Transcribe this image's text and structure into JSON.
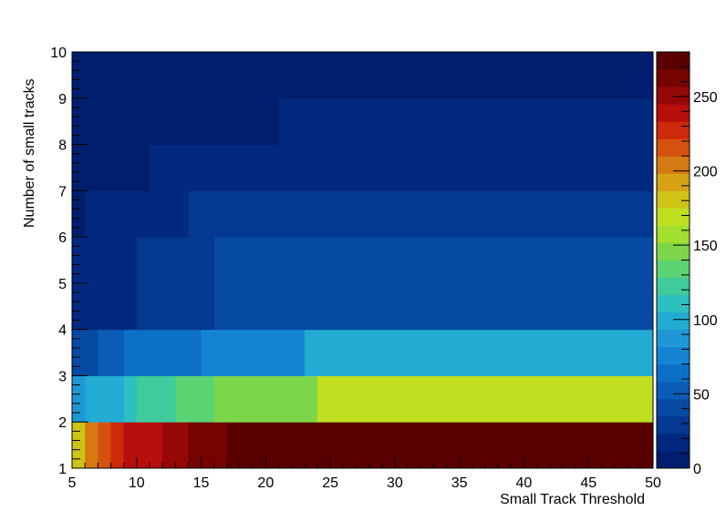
{
  "chart_data": {
    "type": "heatmap",
    "xlabel": "Small Track Threshold",
    "ylabel": "Number of small tracks",
    "xlim": [
      5,
      50
    ],
    "ylim": [
      1,
      10
    ],
    "zlim": [
      0,
      280
    ],
    "x_ticks": [
      "5",
      "10",
      "15",
      "20",
      "25",
      "30",
      "35",
      "40",
      "45",
      "50"
    ],
    "y_ticks": [
      "1",
      "2",
      "3",
      "4",
      "5",
      "6",
      "7",
      "8",
      "9",
      "10"
    ],
    "z_ticks": [
      "0",
      "50",
      "100",
      "150",
      "200",
      "250"
    ],
    "palette": [
      "#001e6e",
      "#02297f",
      "#043891",
      "#074aa3",
      "#0a5cb6",
      "#0c70c8",
      "#1484d2",
      "#1f97d6",
      "#22abd3",
      "#2ebfc0",
      "#3fcb9c",
      "#5ad372",
      "#7dd64a",
      "#a2df2e",
      "#bfdf20",
      "#cec316",
      "#d6a214",
      "#d57a12",
      "#d5520e",
      "#cc2a0b",
      "#b70e0b",
      "#960707",
      "#760202",
      "#5a0000"
    ],
    "rows": [
      {
        "y": [
          1,
          2
        ],
        "cells": [
          {
            "x": [
              5,
              6
            ],
            "z": 183
          },
          {
            "x": [
              6,
              7
            ],
            "z": 205
          },
          {
            "x": [
              7,
              8
            ],
            "z": 217
          },
          {
            "x": [
              8,
              9
            ],
            "z": 228
          },
          {
            "x": [
              9,
              12
            ],
            "z": 240
          },
          {
            "x": [
              12,
              14
            ],
            "z": 253
          },
          {
            "x": [
              14,
              17
            ],
            "z": 266
          },
          {
            "x": [
              17,
              50
            ],
            "z": 275
          }
        ]
      },
      {
        "y": [
          2,
          3
        ],
        "cells": [
          {
            "x": [
              5,
              6
            ],
            "z": 87
          },
          {
            "x": [
              6,
              9
            ],
            "z": 100
          },
          {
            "x": [
              9,
              10
            ],
            "z": 112
          },
          {
            "x": [
              10,
              13
            ],
            "z": 122
          },
          {
            "x": [
              13,
              16
            ],
            "z": 135
          },
          {
            "x": [
              16,
              24
            ],
            "z": 148
          },
          {
            "x": [
              24,
              50
            ],
            "z": 164
          }
        ]
      },
      {
        "y": [
          3,
          4
        ],
        "cells": [
          {
            "x": [
              5,
              7
            ],
            "z": 40
          },
          {
            "x": [
              7,
              9
            ],
            "z": 52
          },
          {
            "x": [
              9,
              15
            ],
            "z": 64
          },
          {
            "x": [
              15,
              23
            ],
            "z": 76
          },
          {
            "x": [
              23,
              50
            ],
            "z": 99
          }
        ]
      },
      {
        "y": [
          4,
          5
        ],
        "cells": [
          {
            "x": [
              5,
              10
            ],
            "z": 18
          },
          {
            "x": [
              10,
              16
            ],
            "z": 28
          },
          {
            "x": [
              16,
              50
            ],
            "z": 40
          }
        ]
      },
      {
        "y": [
          5,
          6
        ],
        "cells": [
          {
            "x": [
              5,
              10
            ],
            "z": 18
          },
          {
            "x": [
              10,
              16
            ],
            "z": 28
          },
          {
            "x": [
              16,
              50
            ],
            "z": 40
          }
        ]
      },
      {
        "y": [
          6,
          7
        ],
        "cells": [
          {
            "x": [
              5,
              6
            ],
            "z": 8
          },
          {
            "x": [
              6,
              14
            ],
            "z": 18
          },
          {
            "x": [
              14,
              50
            ],
            "z": 28
          }
        ]
      },
      {
        "y": [
          7,
          8
        ],
        "cells": [
          {
            "x": [
              5,
              11
            ],
            "z": 5
          },
          {
            "x": [
              11,
              50
            ],
            "z": 18
          }
        ]
      },
      {
        "y": [
          8,
          9
        ],
        "cells": [
          {
            "x": [
              5,
              21
            ],
            "z": 5
          },
          {
            "x": [
              21,
              50
            ],
            "z": 18
          }
        ]
      },
      {
        "y": [
          9,
          10
        ],
        "cells": [
          {
            "x": [
              5,
              50
            ],
            "z": 5
          }
        ]
      }
    ]
  }
}
